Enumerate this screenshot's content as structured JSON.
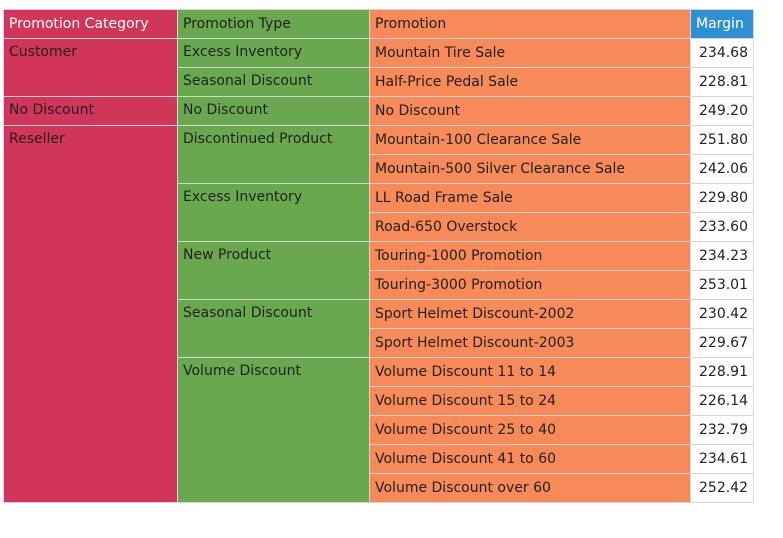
{
  "headers": {
    "category": "Promotion Category",
    "type": "Promotion Type",
    "promotion": "Promotion",
    "margin": "Margin"
  },
  "categories": [
    {
      "name": "Customer",
      "types": [
        {
          "name": "Excess Inventory",
          "promotions": [
            {
              "name": "Mountain Tire Sale",
              "margin": "234.68"
            }
          ]
        },
        {
          "name": "Seasonal Discount",
          "promotions": [
            {
              "name": "Half-Price Pedal Sale",
              "margin": "228.81"
            }
          ]
        }
      ]
    },
    {
      "name": "No Discount",
      "types": [
        {
          "name": "No Discount",
          "promotions": [
            {
              "name": "No Discount",
              "margin": "249.20"
            }
          ]
        }
      ]
    },
    {
      "name": "Reseller",
      "types": [
        {
          "name": "Discontinued Product",
          "promotions": [
            {
              "name": "Mountain-100 Clearance Sale",
              "margin": "251.80"
            },
            {
              "name": "Mountain-500 Silver Clearance Sale",
              "margin": "242.06"
            }
          ]
        },
        {
          "name": "Excess Inventory",
          "promotions": [
            {
              "name": "LL Road Frame Sale",
              "margin": "229.80"
            },
            {
              "name": "Road-650 Overstock",
              "margin": "233.60"
            }
          ]
        },
        {
          "name": "New Product",
          "promotions": [
            {
              "name": "Touring-1000 Promotion",
              "margin": "234.23"
            },
            {
              "name": "Touring-3000 Promotion",
              "margin": "253.01"
            }
          ]
        },
        {
          "name": "Seasonal Discount",
          "promotions": [
            {
              "name": "Sport Helmet Discount-2002",
              "margin": "230.42"
            },
            {
              "name": "Sport Helmet Discount-2003",
              "margin": "229.67"
            }
          ]
        },
        {
          "name": "Volume Discount",
          "promotions": [
            {
              "name": "Volume Discount 11 to 14",
              "margin": "228.91"
            },
            {
              "name": "Volume Discount 15 to 24",
              "margin": "226.14"
            },
            {
              "name": "Volume Discount 25 to 40",
              "margin": "232.79"
            },
            {
              "name": "Volume Discount 41 to 60",
              "margin": "234.61"
            },
            {
              "name": "Volume Discount over 60",
              "margin": "252.42"
            }
          ]
        }
      ]
    }
  ],
  "colors": {
    "category": "#d2355a",
    "type": "#6aa84f",
    "promotion": "#f78a58",
    "margin_header": "#2f8fd3"
  }
}
